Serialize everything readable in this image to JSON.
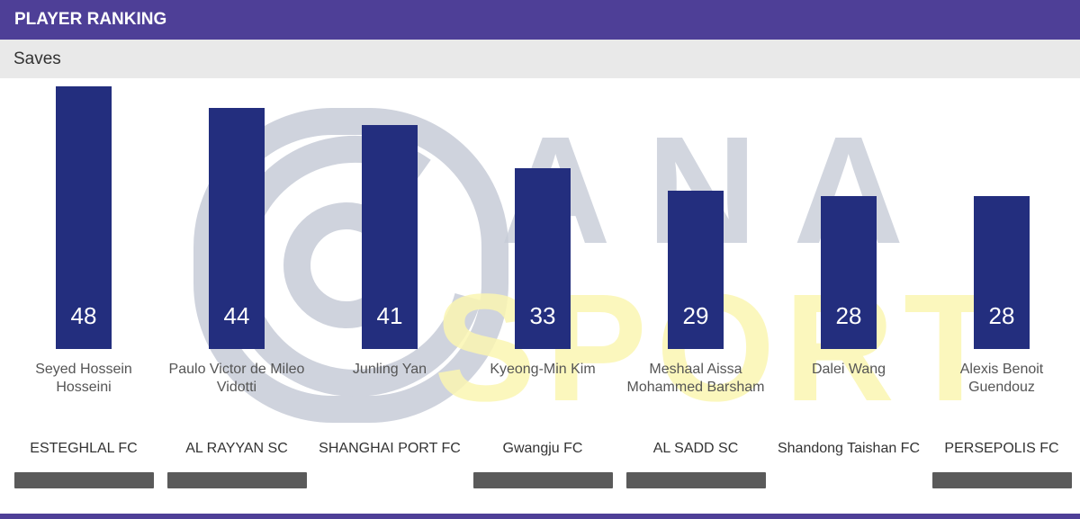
{
  "header": {
    "title": "PLAYER RANKING"
  },
  "subheader": {
    "title": "Saves"
  },
  "watermark": {
    "text_top": "ANA",
    "text_bottom": "SPORT"
  },
  "colors": {
    "header_bg": "#4e3f97",
    "bar": "#232e7e",
    "club_bar": "#5a5a5a",
    "watermark_gray": "#c7ccd8",
    "watermark_yellow": "#fbf6b2"
  },
  "chart_data": {
    "type": "bar",
    "title": "Saves",
    "categories": [
      "Seyed Hossein Hosseini",
      "Paulo Victor de Mileo Vidotti",
      "Junling Yan",
      "Kyeong-Min Kim",
      "Meshaal Aissa Mohammed Barsham",
      "Dalei Wang",
      "Alexis Benoit Guendouz"
    ],
    "values": [
      48,
      44,
      41,
      33,
      29,
      28,
      28
    ],
    "clubs": [
      "ESTEGHLAL FC",
      "AL RAYYAN SC",
      "SHANGHAI PORT FC",
      "Gwangju FC",
      "AL SADD SC",
      "Shandong Taishan FC",
      "PERSEPOLIS FC"
    ],
    "club_bar_visible": [
      true,
      true,
      false,
      true,
      true,
      false,
      true
    ],
    "ylim": [
      0,
      48
    ],
    "grid": false
  }
}
